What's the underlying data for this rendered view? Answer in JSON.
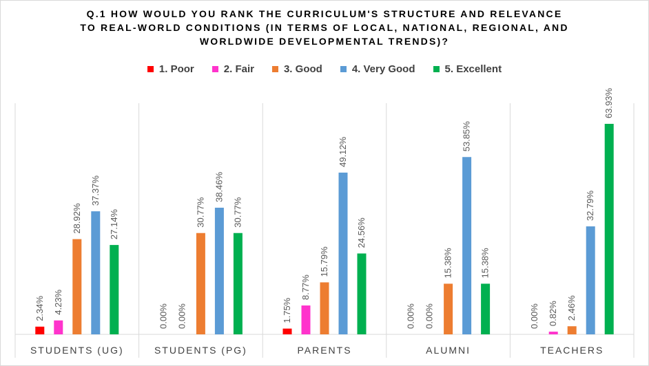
{
  "chart_data": {
    "type": "bar",
    "title_lines": [
      "Q.1   HOW WOULD YOU RANK THE CURRICULUM'S STRUCTURE AND RELEVANCE",
      "TO REAL-WORLD CONDITIONS (IN TERMS OF LOCAL, NATIONAL, REGIONAL, AND",
      "WORLDWIDE DEVELOPMENTAL TRENDS)?"
    ],
    "categories": [
      "STUDENTS (UG)",
      "STUDENTS (PG)",
      "PARENTS",
      "ALUMNI",
      "TEACHERS"
    ],
    "series": [
      {
        "name": "1.  Poor",
        "color": "#ff0000",
        "values": [
          2.34,
          0.0,
          1.75,
          0.0,
          0.0
        ],
        "labels": [
          "2.34%",
          "0.00%",
          "1.75%",
          "0.00%",
          "0.00%"
        ]
      },
      {
        "name": "2.  Fair",
        "color": "#ff33cc",
        "values": [
          4.23,
          0.0,
          8.77,
          0.0,
          0.82
        ],
        "labels": [
          "4.23%",
          "0.00%",
          "8.77%",
          "0.00%",
          "0.82%"
        ]
      },
      {
        "name": "3.  Good",
        "color": "#ed7d31",
        "values": [
          28.92,
          30.77,
          15.79,
          15.38,
          2.46
        ],
        "labels": [
          "28.92%",
          "30.77%",
          "15.79%",
          "15.38%",
          "2.46%"
        ]
      },
      {
        "name": "4.  Very Good",
        "color": "#5b9bd5",
        "values": [
          37.37,
          38.46,
          49.12,
          53.85,
          32.79
        ],
        "labels": [
          "37.37%",
          "38.46%",
          "49.12%",
          "53.85%",
          "32.79%"
        ]
      },
      {
        "name": "5.  Excellent",
        "color": "#00b050",
        "values": [
          27.14,
          30.77,
          24.56,
          15.38,
          63.93
        ],
        "labels": [
          "27.14%",
          "30.77%",
          "24.56%",
          "15.38%",
          "63.93%"
        ]
      }
    ],
    "ylim": [
      0,
      70
    ],
    "grid": false,
    "legend_position": "top"
  }
}
